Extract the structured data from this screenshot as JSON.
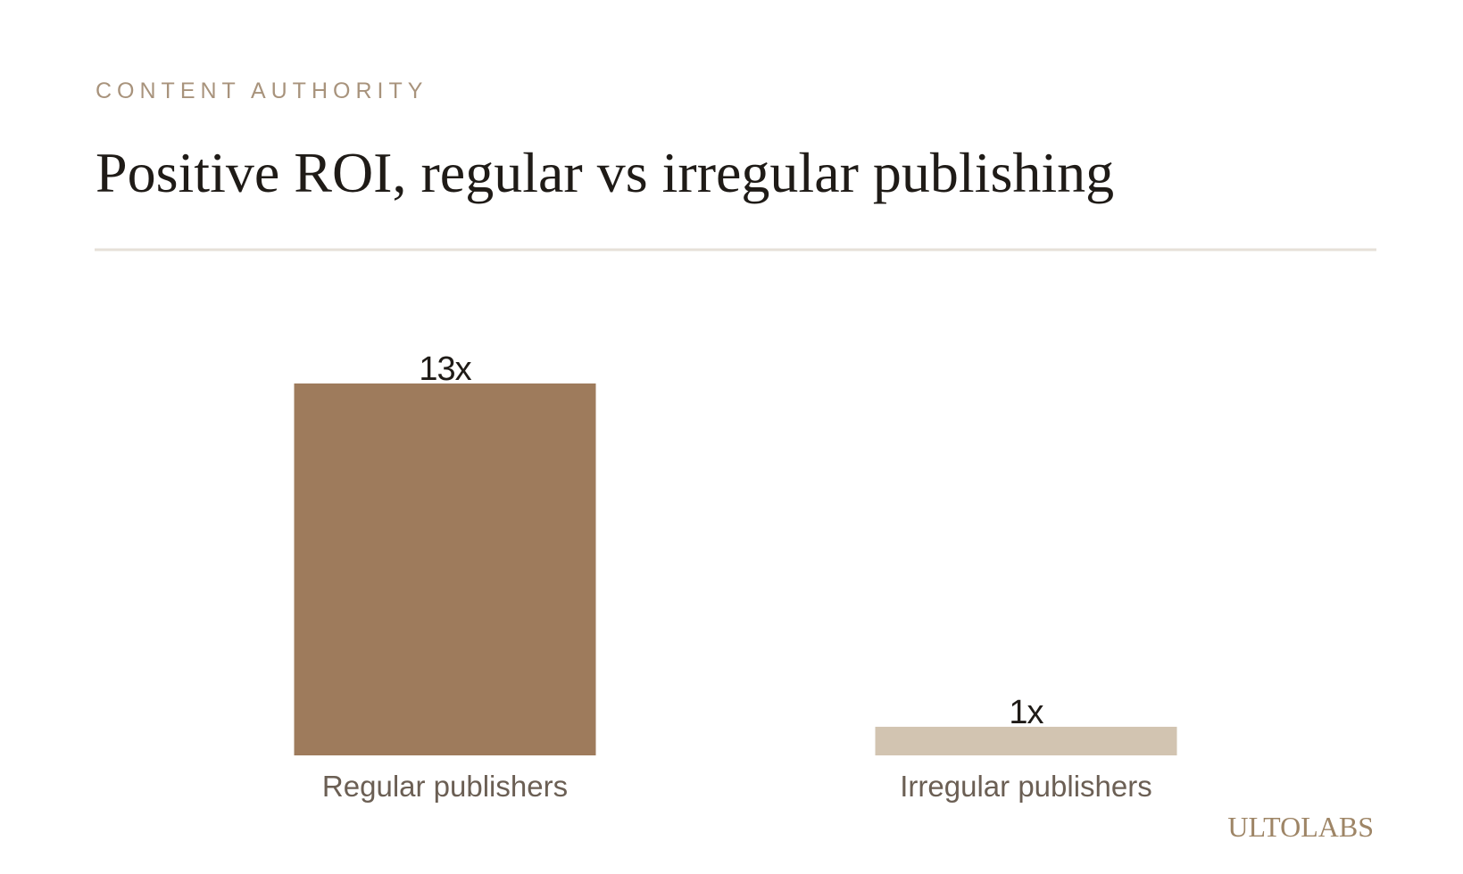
{
  "chart_data": {
    "type": "bar",
    "eyebrow": "CONTENT AUTHORITY",
    "title": "Positive ROI, regular vs irregular publishing",
    "categories": [
      "Regular publishers",
      "Irregular publishers"
    ],
    "values": [
      13,
      1
    ],
    "value_labels": [
      "13x",
      "1x"
    ],
    "colors": [
      "#9e7b5c",
      "#d2c4b1"
    ],
    "brand": "ULTOLABS"
  }
}
